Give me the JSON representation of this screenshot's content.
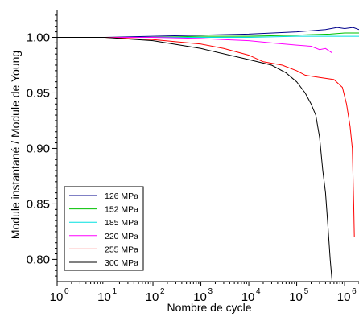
{
  "chart_data": {
    "type": "line",
    "xlabel": "Nombre de cycle",
    "ylabel": "Module instantané / Module de Young",
    "x_scale": "log",
    "xlim": [
      1,
      2000000
    ],
    "ylim": [
      0.78,
      1.025
    ],
    "x_ticks": [
      {
        "base": "10",
        "exp": "0",
        "value": 1
      },
      {
        "base": "10",
        "exp": "1",
        "value": 10
      },
      {
        "base": "10",
        "exp": "2",
        "value": 100
      },
      {
        "base": "10",
        "exp": "3",
        "value": 1000
      },
      {
        "base": "10",
        "exp": "4",
        "value": 10000
      },
      {
        "base": "10",
        "exp": "5",
        "value": 100000
      },
      {
        "base": "10",
        "exp": "6",
        "value": 1000000
      }
    ],
    "y_ticks": [
      {
        "label": "0.80",
        "value": 0.8
      },
      {
        "label": "0.85",
        "value": 0.85
      },
      {
        "label": "0.90",
        "value": 0.9
      },
      {
        "label": "0.95",
        "value": 0.95
      },
      {
        "label": "1.00",
        "value": 1.0
      }
    ],
    "grid": false,
    "legend_position": "bottom-left",
    "series": [
      {
        "name": "126 MPa",
        "color": "#00008b",
        "x": [
          1,
          10,
          100,
          1000,
          10000,
          100000,
          200000,
          400000,
          700000,
          1000000,
          1500000,
          2000000
        ],
        "y": [
          1.0,
          1.0,
          1.001,
          1.002,
          1.003,
          1.005,
          1.006,
          1.007,
          1.009,
          1.008,
          1.009,
          1.007
        ]
      },
      {
        "name": "152 MPa",
        "color": "#00c000",
        "x": [
          1,
          10,
          100,
          1000,
          10000,
          100000,
          500000,
          1000000,
          2000000
        ],
        "y": [
          1.0,
          1.0,
          1.0,
          1.001,
          1.001,
          1.002,
          1.003,
          1.004,
          1.004
        ]
      },
      {
        "name": "185 MPa",
        "color": "#00e0e0",
        "x": [
          1,
          10,
          100,
          1000,
          10000,
          100000,
          500000,
          1000000,
          2000000
        ],
        "y": [
          1.0,
          1.0,
          1.0,
          1.0,
          1.0,
          1.001,
          1.001,
          1.001,
          1.001
        ]
      },
      {
        "name": "220 MPa",
        "color": "#ff00ff",
        "x": [
          1,
          10,
          100,
          1000,
          3000,
          10000,
          30000,
          100000,
          200000,
          300000,
          400000,
          550000
        ],
        "y": [
          1.0,
          1.0,
          1.0,
          0.999,
          0.998,
          0.997,
          0.995,
          0.993,
          0.992,
          0.989,
          0.99,
          0.986
        ]
      },
      {
        "name": "255 MPa",
        "color": "#ff0000",
        "x": [
          1,
          10,
          100,
          1000,
          3000,
          10000,
          20000,
          50000,
          100000,
          150000,
          300000,
          600000,
          900000,
          1100000,
          1300000,
          1450000,
          1550000,
          1600000
        ],
        "y": [
          1.0,
          1.0,
          0.998,
          0.994,
          0.99,
          0.984,
          0.978,
          0.975,
          0.97,
          0.966,
          0.964,
          0.962,
          0.955,
          0.94,
          0.92,
          0.9,
          0.85,
          0.82
        ]
      },
      {
        "name": "300 MPa",
        "color": "#000000",
        "x": [
          1,
          10,
          100,
          1000,
          10000,
          30000,
          60000,
          100000,
          150000,
          200000,
          250000,
          300000,
          350000,
          400000,
          450000,
          500000,
          550000
        ],
        "y": [
          1.0,
          1.0,
          0.997,
          0.99,
          0.98,
          0.975,
          0.968,
          0.96,
          0.95,
          0.94,
          0.93,
          0.91,
          0.88,
          0.86,
          0.83,
          0.8,
          0.78
        ]
      }
    ]
  }
}
